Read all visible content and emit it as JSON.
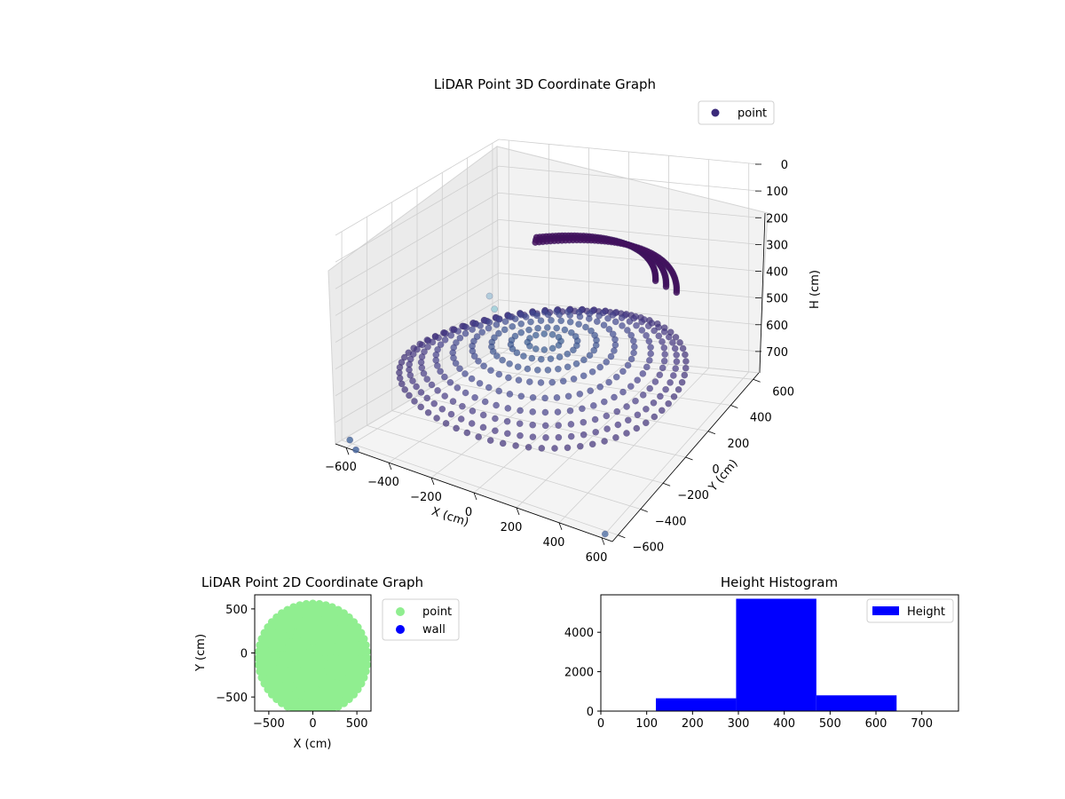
{
  "figure": {
    "background": "#ffffff"
  },
  "chart_data": [
    {
      "type": "scatter",
      "projection": "3d",
      "title": "LiDAR Point 3D Coordinate Graph",
      "xlabel": "X (cm)",
      "ylabel": "Y (cm)",
      "zlabel": "H (cm)",
      "xlim": [
        -650,
        650
      ],
      "ylim": [
        -650,
        650
      ],
      "zlim": [
        780,
        0
      ],
      "z_inverted": true,
      "xticks": [
        "−600",
        "−400",
        "−200",
        "0",
        "200",
        "400",
        "600"
      ],
      "yticks": [
        "−600",
        "−400",
        "−200",
        "0",
        "200",
        "400",
        "600"
      ],
      "zticks": [
        "0",
        "100",
        "200",
        "300",
        "400",
        "500",
        "600",
        "700"
      ],
      "colormap": "viridis",
      "series": [
        {
          "name": "point",
          "color": "#3b2a7a"
        }
      ],
      "legend": {
        "position": "top-right",
        "entries": [
          "point"
        ]
      },
      "description_of_cloud": {
        "shape": "disc / bowl of points",
        "radius_cm_range": [
          0,
          620
        ],
        "height_cm_range": [
          200,
          640
        ],
        "outliers": [
          {
            "x": -640,
            "y": 600,
            "h": 620
          },
          {
            "x": -640,
            "y": 560,
            "h": 560
          },
          {
            "x": -600,
            "y": -620,
            "h": 760
          },
          {
            "x": -560,
            "y": -640,
            "h": 780
          },
          {
            "x": 600,
            "y": -620,
            "h": 780
          }
        ]
      },
      "grid": true
    },
    {
      "type": "scatter",
      "title": "LiDAR Point 2D Coordinate Graph",
      "xlabel": "X (cm)",
      "ylabel": "Y (cm)",
      "xlim": [
        -660,
        660
      ],
      "ylim": [
        -660,
        660
      ],
      "xticks": [
        -500,
        0,
        500
      ],
      "yticks": [
        -500,
        0,
        500
      ],
      "series": [
        {
          "name": "point",
          "color": "#90ee90"
        },
        {
          "name": "wall",
          "color": "#0000ff"
        }
      ],
      "legend": {
        "position": "outside-right",
        "entries": [
          "point",
          "wall"
        ]
      },
      "cloud": {
        "radius_cm": 620,
        "center": [
          0,
          -60
        ]
      },
      "grid": false
    },
    {
      "type": "bar",
      "subtype": "histogram",
      "title": "Height Histogram",
      "xlabel": "",
      "ylabel": "",
      "xlim": [
        0,
        780
      ],
      "ylim": [
        0,
        5900
      ],
      "xticks": [
        0,
        100,
        200,
        300,
        400,
        500,
        600,
        700
      ],
      "yticks": [
        0,
        2000,
        4000
      ],
      "bins": [
        {
          "start": 120,
          "end": 295,
          "count": 650
        },
        {
          "start": 295,
          "end": 470,
          "count": 5700
        },
        {
          "start": 470,
          "end": 645,
          "count": 800
        }
      ],
      "series": [
        {
          "name": "Height",
          "color": "#0000ff"
        }
      ],
      "legend": {
        "position": "top-right",
        "entries": [
          "Height"
        ]
      },
      "grid": false
    }
  ]
}
